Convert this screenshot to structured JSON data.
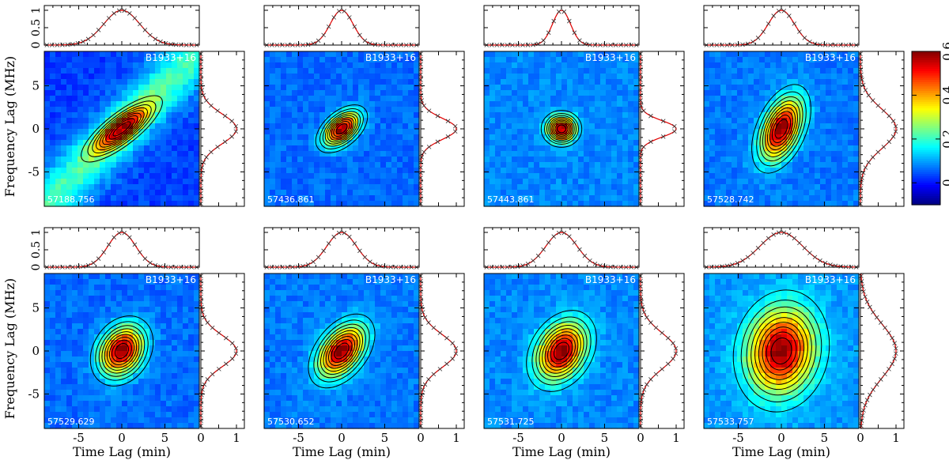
{
  "chart_data": {
    "type": "heatmap",
    "description_source": "B1933+16",
    "xlabel": "Time Lag (min)",
    "ylabel": "Frequency Lag (MHz)",
    "xlim": [
      -9,
      9
    ],
    "ylim": [
      -9,
      9
    ],
    "xticks": [
      -5,
      0,
      5
    ],
    "yticks": [
      -5,
      0,
      5
    ],
    "profile_ticks": [
      0,
      0.5,
      1
    ],
    "profile_tick_labels": [
      "0",
      "0.5",
      "1"
    ],
    "colorbar": {
      "ticks": [
        0,
        0.2,
        0.4,
        0.6
      ],
      "tick_labels": [
        "0",
        "0.2",
        "0.4",
        "0.6"
      ],
      "range": [
        -0.1,
        0.6
      ],
      "colormap": "jet"
    },
    "panels": [
      {
        "source": "B1933+16",
        "mjd": "57188.756",
        "sigma_t": 2.2,
        "sigma_f": 1.8,
        "corr": 0.8,
        "peak": 0.6,
        "bg": 0.03,
        "pedestal": 0.18
      },
      {
        "source": "B1933+16",
        "mjd": "57436.861",
        "sigma_t": 1.4,
        "sigma_f": 1.3,
        "corr": 0.5,
        "peak": 0.6,
        "bg": 0.06,
        "pedestal": 0.0
      },
      {
        "source": "B1933+16",
        "mjd": "57443.861",
        "sigma_t": 1.1,
        "sigma_f": 1.0,
        "corr": 0.0,
        "peak": 0.6,
        "bg": 0.08,
        "pedestal": 0.0
      },
      {
        "source": "B1933+16",
        "mjd": "57528.742",
        "sigma_t": 1.6,
        "sigma_f": 2.4,
        "corr": 0.45,
        "peak": 0.6,
        "bg": 0.07,
        "pedestal": 0.0
      },
      {
        "source": "B1933+16",
        "mjd": "57529.629",
        "sigma_t": 1.7,
        "sigma_f": 1.9,
        "corr": 0.25,
        "peak": 0.6,
        "bg": 0.06,
        "pedestal": 0.0
      },
      {
        "source": "B1933+16",
        "mjd": "57530.652",
        "sigma_t": 1.8,
        "sigma_f": 2.0,
        "corr": 0.45,
        "peak": 0.6,
        "bg": 0.07,
        "pedestal": 0.0
      },
      {
        "source": "B1933+16",
        "mjd": "57531.725",
        "sigma_t": 1.9,
        "sigma_f": 2.2,
        "corr": 0.3,
        "peak": 0.6,
        "bg": 0.08,
        "pedestal": 0.0
      },
      {
        "source": "B1933+16",
        "mjd": "57533.757",
        "sigma_t": 2.6,
        "sigma_f": 3.3,
        "corr": 0.1,
        "peak": 0.6,
        "bg": 0.09,
        "pedestal": 0.0
      }
    ],
    "contour_levels": [
      0.1,
      0.2,
      0.3,
      0.4,
      0.5,
      0.6,
      0.7,
      0.8,
      0.9
    ]
  }
}
